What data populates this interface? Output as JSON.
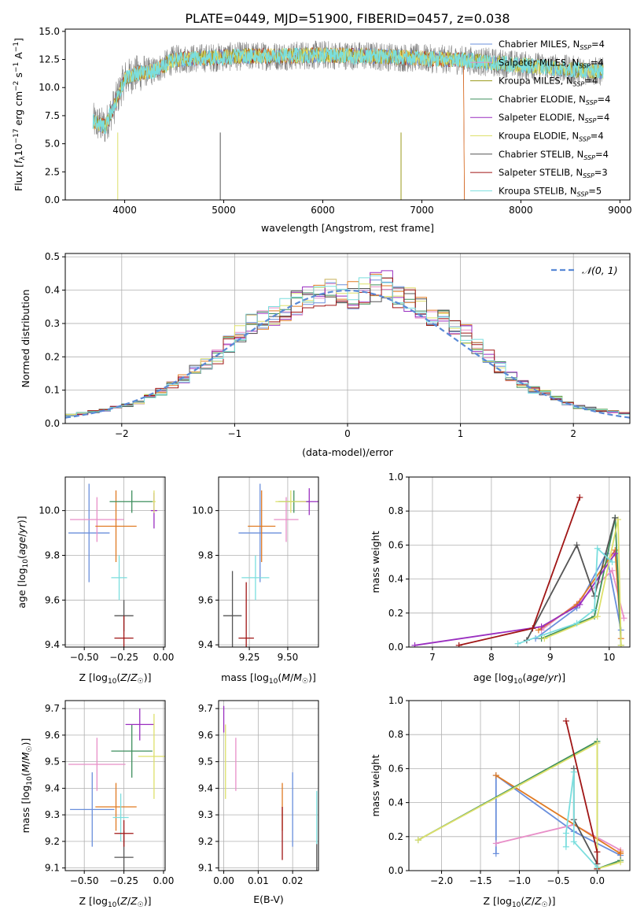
{
  "figure_title": "PLATE=0449, MJD=51900, FIBERID=0457, z=0.038",
  "colors": {
    "Chabrier MILES": "#6a8fdc",
    "Salpeter MILES": "#e88fc8",
    "Kroupa MILES": "#9a9a1a",
    "Chabrier ELODIE": "#3e8f5e",
    "Salpeter ELODIE": "#9a2fc0",
    "Kroupa ELODIE": "#dde06a",
    "Chabrier STELIB": "#555555",
    "Salpeter STELIB": "#a01515",
    "Kroupa STELIB": "#7adede",
    "orange": "#e07a22",
    "normal": "#5a8ad6"
  },
  "chart_data": [
    {
      "id": "spectrum",
      "type": "line",
      "title": "",
      "xlabel": "wavelength [Angstrom, rest frame]",
      "ylabel": "Flux [f_λ10^-17 erg cm^-2 s^-1 A^-1]",
      "xlim": [
        3400,
        9100
      ],
      "ylim": [
        0,
        15.2
      ],
      "xticks": [
        4000,
        5000,
        6000,
        7000,
        8000,
        9000
      ],
      "yticks": [
        0.0,
        2.5,
        5.0,
        7.5,
        10.0,
        12.5,
        15.0
      ],
      "grid": false,
      "legend_position": "top-right",
      "legend": [
        {
          "name": "Chabrier MILES, N_SSP=4",
          "color": "#6a8fdc"
        },
        {
          "name": "Salpeter MILES, N_SSP=4",
          "color": "#e88fc8"
        },
        {
          "name": "Kroupa MILES, N_SSP=4",
          "color": "#9a9a1a"
        },
        {
          "name": "Chabrier ELODIE, N_SSP=4",
          "color": "#3e8f5e"
        },
        {
          "name": "Salpeter ELODIE, N_SSP=4",
          "color": "#9a2fc0"
        },
        {
          "name": "Kroupa ELODIE, N_SSP=4",
          "color": "#dde06a"
        },
        {
          "name": "Chabrier STELIB, N_SSP=4",
          "color": "#555555"
        },
        {
          "name": "Salpeter STELIB, N_SSP=3",
          "color": "#a01515"
        },
        {
          "name": "Kroupa STELIB, N_SSP=5",
          "color": "#7adede"
        }
      ],
      "data_range": [
        3680,
        8830
      ],
      "continuum": [
        [
          3680,
          7.0
        ],
        [
          3800,
          6.5
        ],
        [
          3900,
          8.5
        ],
        [
          4000,
          10.8
        ],
        [
          4100,
          11.2
        ],
        [
          4300,
          11.5
        ],
        [
          4500,
          12.5
        ],
        [
          4700,
          12.6
        ],
        [
          5000,
          12.7
        ],
        [
          5200,
          12.8
        ],
        [
          5500,
          12.8
        ],
        [
          6000,
          12.9
        ],
        [
          6500,
          12.8
        ],
        [
          7000,
          12.6
        ],
        [
          7500,
          12.4
        ],
        [
          8000,
          12.0
        ],
        [
          8500,
          11.6
        ],
        [
          8830,
          11.4
        ]
      ]
    },
    {
      "id": "histogram",
      "type": "bar",
      "title": "",
      "xlabel": "(data-model)/error",
      "ylabel": "Normed distribution",
      "xlim": [
        -2.5,
        2.5
      ],
      "ylim": [
        0,
        0.51
      ],
      "xticks": [
        -2,
        -1,
        0,
        1,
        2
      ],
      "yticks": [
        0.0,
        0.1,
        0.2,
        0.3,
        0.4,
        0.5
      ],
      "grid": true,
      "legend_position": "top-right",
      "legend_label": "𝒩(0, 1)",
      "bin_width": 0.1,
      "bin_centers": [
        -2.45,
        -2.35,
        -2.25,
        -2.15,
        -2.05,
        -1.95,
        -1.85,
        -1.75,
        -1.65,
        -1.55,
        -1.45,
        -1.35,
        -1.25,
        -1.15,
        -1.05,
        -0.95,
        -0.85,
        -0.75,
        -0.65,
        -0.55,
        -0.45,
        -0.35,
        -0.25,
        -0.15,
        -0.05,
        0.05,
        0.15,
        0.25,
        0.35,
        0.45,
        0.55,
        0.65,
        0.75,
        0.85,
        0.95,
        1.05,
        1.15,
        1.25,
        1.35,
        1.45,
        1.55,
        1.65,
        1.75,
        1.85,
        1.95,
        2.05,
        2.15,
        2.25,
        2.35,
        2.45
      ],
      "base_values": [
        0.025,
        0.03,
        0.035,
        0.04,
        0.05,
        0.055,
        0.065,
        0.08,
        0.095,
        0.115,
        0.135,
        0.16,
        0.175,
        0.2,
        0.24,
        0.27,
        0.3,
        0.31,
        0.325,
        0.34,
        0.36,
        0.375,
        0.38,
        0.39,
        0.39,
        0.385,
        0.4,
        0.41,
        0.415,
        0.39,
        0.37,
        0.35,
        0.33,
        0.31,
        0.3,
        0.27,
        0.23,
        0.2,
        0.17,
        0.14,
        0.12,
        0.1,
        0.09,
        0.075,
        0.06,
        0.05,
        0.045,
        0.04,
        0.035,
        0.03
      ],
      "normal_curve": {
        "mean": 0,
        "sigma": 1
      }
    },
    {
      "id": "age-vs-Z",
      "type": "scatter",
      "xlabel": "Z [log10(Z/Z☉)]",
      "ylabel": "age  [log10(age/yr)]",
      "xlim": [
        -0.62,
        0.01
      ],
      "ylim": [
        9.39,
        10.15
      ],
      "xticks": [
        -0.5,
        -0.25,
        0.0
      ],
      "xticklabels": [
        "−0.50",
        "−0.25",
        "0.00"
      ],
      "yticks": [
        9.4,
        9.6,
        9.8,
        10.0
      ],
      "grid": true,
      "points": [
        {
          "name": "Chabrier MILES",
          "x": -0.47,
          "y": 9.9,
          "ex": 0.13,
          "ey": 0.22
        },
        {
          "name": "Salpeter MILES",
          "x": -0.42,
          "y": 9.96,
          "ex": 0.17,
          "ey": 0.1
        },
        {
          "name": "orange",
          "x": -0.3,
          "y": 9.93,
          "ex": 0.13,
          "ey": 0.16
        },
        {
          "name": "Chabrier ELODIE",
          "x": -0.2,
          "y": 10.04,
          "ex": 0.14,
          "ey": 0.05
        },
        {
          "name": "Salpeter ELODIE",
          "x": -0.06,
          "y": 10.0,
          "ex": 0.02,
          "ey": 0.08
        },
        {
          "name": "Kroupa ELODIE",
          "x": -0.06,
          "y": 10.04,
          "ex": 0.01,
          "ey": 0.05
        },
        {
          "name": "Kroupa STELIB",
          "x": -0.28,
          "y": 9.7,
          "ex": 0.05,
          "ey": 0.1
        },
        {
          "name": "Chabrier STELIB",
          "x": -0.25,
          "y": 9.53,
          "ex": 0.06,
          "ey": 0.07
        },
        {
          "name": "Salpeter STELIB",
          "x": -0.25,
          "y": 9.43,
          "ex": 0.06,
          "ey": 0.1
        }
      ]
    },
    {
      "id": "age-vs-mass",
      "type": "scatter",
      "xlabel": "mass [log10(M/M☉)]",
      "ylabel": "",
      "xlim": [
        9.05,
        9.7
      ],
      "ylim": [
        9.39,
        10.15
      ],
      "xticks": [
        9.25,
        9.5
      ],
      "xticklabels": [
        "9.25",
        "9.50"
      ],
      "yticks": [
        9.4,
        9.6,
        9.8,
        10.0
      ],
      "grid": true,
      "points": [
        {
          "name": "Chabrier MILES",
          "x": 9.32,
          "y": 9.9,
          "ex": 0.14,
          "ey": 0.22
        },
        {
          "name": "Salpeter MILES",
          "x": 9.49,
          "y": 9.96,
          "ex": 0.08,
          "ey": 0.1
        },
        {
          "name": "orange",
          "x": 9.33,
          "y": 9.93,
          "ex": 0.09,
          "ey": 0.16
        },
        {
          "name": "Chabrier ELODIE",
          "x": 9.54,
          "y": 10.04,
          "ex": 0.1,
          "ey": 0.05
        },
        {
          "name": "Salpeter ELODIE",
          "x": 9.64,
          "y": 10.04,
          "ex": 0.06,
          "ey": 0.06
        },
        {
          "name": "Kroupa ELODIE",
          "x": 9.52,
          "y": 10.04,
          "ex": 0.1,
          "ey": 0.05
        },
        {
          "name": "Kroupa STELIB",
          "x": 9.29,
          "y": 9.7,
          "ex": 0.09,
          "ey": 0.1
        },
        {
          "name": "Chabrier STELIB",
          "x": 9.14,
          "y": 9.53,
          "ex": 0.06,
          "ey": 0.2
        },
        {
          "name": "Salpeter STELIB",
          "x": 9.23,
          "y": 9.43,
          "ex": 0.05,
          "ey": 0.25
        }
      ]
    },
    {
      "id": "massweight-vs-age",
      "type": "line",
      "xlabel": "age  [log10(age/yr)]",
      "ylabel": "mass weight",
      "xlim": [
        6.6,
        10.35
      ],
      "ylim": [
        0,
        1.0
      ],
      "xticks": [
        7,
        8,
        9,
        10
      ],
      "yticks": [
        0.0,
        0.2,
        0.4,
        0.6,
        0.8,
        1.0
      ],
      "grid": true,
      "series": [
        {
          "name": "Chabrier MILES",
          "x": [
            8.75,
            9.45,
            9.95,
            10.2
          ],
          "y": [
            0.05,
            0.23,
            0.55,
            0.1
          ]
        },
        {
          "name": "Salpeter MILES",
          "x": [
            8.85,
            9.5,
            10.05,
            10.25
          ],
          "y": [
            0.1,
            0.27,
            0.45,
            0.17
          ]
        },
        {
          "name": "orange",
          "x": [
            8.8,
            9.45,
            10.1,
            10.2
          ],
          "y": [
            0.1,
            0.25,
            0.57,
            0.05
          ]
        },
        {
          "name": "Chabrier ELODIE",
          "x": [
            8.85,
            9.75,
            10.1,
            10.2
          ],
          "y": [
            0.05,
            0.18,
            0.76,
            0.01
          ]
        },
        {
          "name": "Salpeter ELODIE",
          "x": [
            6.7,
            8.85,
            9.5,
            10.1
          ],
          "y": [
            0.01,
            0.12,
            0.25,
            0.55
          ]
        },
        {
          "name": "Kroupa ELODIE",
          "x": [
            8.9,
            9.8,
            10.15,
            10.2
          ],
          "y": [
            0.05,
            0.18,
            0.75,
            0.01
          ]
        },
        {
          "name": "Chabrier STELIB",
          "x": [
            8.6,
            9.45,
            9.75,
            10.1
          ],
          "y": [
            0.04,
            0.6,
            0.3,
            0.76
          ]
        },
        {
          "name": "Salpeter STELIB",
          "x": [
            7.45,
            8.7,
            9.5
          ],
          "y": [
            0.01,
            0.11,
            0.88
          ]
        },
        {
          "name": "Kroupa STELIB",
          "x": [
            8.45,
            9.45,
            9.75,
            9.8,
            10.05
          ],
          "y": [
            0.02,
            0.14,
            0.22,
            0.58,
            0.5
          ]
        }
      ]
    },
    {
      "id": "mass-vs-Z",
      "type": "scatter",
      "xlabel": "Z [log10(Z/Z☉)]",
      "ylabel": "mass [log10(M/M☉)]",
      "xlim": [
        -0.62,
        0.01
      ],
      "ylim": [
        9.09,
        9.73
      ],
      "xticks": [
        -0.5,
        -0.25,
        0.0
      ],
      "xticklabels": [
        "−0.50",
        "−0.25",
        "0.00"
      ],
      "yticks": [
        9.1,
        9.2,
        9.3,
        9.4,
        9.5,
        9.6,
        9.7
      ],
      "grid": true,
      "points": [
        {
          "name": "Chabrier MILES",
          "x": -0.45,
          "y": 9.32,
          "ex": 0.14,
          "ey": 0.14
        },
        {
          "name": "Salpeter MILES",
          "x": -0.42,
          "y": 9.49,
          "ex": 0.18,
          "ey": 0.1
        },
        {
          "name": "orange",
          "x": -0.3,
          "y": 9.33,
          "ex": 0.13,
          "ey": 0.09
        },
        {
          "name": "Chabrier ELODIE",
          "x": -0.2,
          "y": 9.54,
          "ex": 0.13,
          "ey": 0.1
        },
        {
          "name": "Salpeter ELODIE",
          "x": -0.15,
          "y": 9.64,
          "ex": 0.09,
          "ey": 0.06
        },
        {
          "name": "Kroupa ELODIE",
          "x": -0.06,
          "y": 9.52,
          "ex": 0.1,
          "ey": 0.16
        },
        {
          "name": "Kroupa STELIB",
          "x": -0.27,
          "y": 9.29,
          "ex": 0.05,
          "ey": 0.09
        },
        {
          "name": "Chabrier STELIB",
          "x": -0.25,
          "y": 9.14,
          "ex": 0.06,
          "ey": 0.1
        },
        {
          "name": "Salpeter STELIB",
          "x": -0.25,
          "y": 9.23,
          "ex": 0.06,
          "ey": 0.05
        }
      ]
    },
    {
      "id": "mass-vs-ebv",
      "type": "scatter",
      "xlabel": "E(B-V)",
      "ylabel": "",
      "xlim": [
        -0.0015,
        0.0275
      ],
      "ylim": [
        9.09,
        9.73
      ],
      "xticks": [
        0.0,
        0.01,
        0.02
      ],
      "xticklabels": [
        "0.00",
        "0.01",
        "0.02"
      ],
      "yticks": [
        9.1,
        9.2,
        9.3,
        9.4,
        9.5,
        9.6,
        9.7
      ],
      "grid": true,
      "points": [
        {
          "name": "Chabrier MILES",
          "x": 0.02,
          "y": 9.32,
          "ex": 0,
          "ey": 0.14
        },
        {
          "name": "Salpeter MILES",
          "x": 0.0035,
          "y": 9.49,
          "ex": 0,
          "ey": 0.1
        },
        {
          "name": "orange",
          "x": 0.017,
          "y": 9.33,
          "ex": 0,
          "ey": 0.09
        },
        {
          "name": "Salpeter ELODIE",
          "x": 0.0,
          "y": 9.66,
          "ex": 0,
          "ey": 0.05
        },
        {
          "name": "Kroupa ELODIE",
          "x": 0.0005,
          "y": 9.5,
          "ex": 0,
          "ey": 0.14
        },
        {
          "name": "Kroupa STELIB",
          "x": 0.027,
          "y": 9.29,
          "ex": 0,
          "ey": 0.1
        },
        {
          "name": "Chabrier STELIB",
          "x": 0.027,
          "y": 9.14,
          "ex": 0,
          "ey": 0.05
        },
        {
          "name": "Salpeter STELIB",
          "x": 0.017,
          "y": 9.23,
          "ex": 0,
          "ey": 0.1
        }
      ]
    },
    {
      "id": "massweight-vs-Z",
      "type": "line",
      "xlabel": "Z [log10(Z/Z☉)]",
      "ylabel": "mass weight",
      "xlim": [
        -2.42,
        0.42
      ],
      "ylim": [
        0,
        1.0
      ],
      "xticks": [
        -2.0,
        -1.5,
        -1.0,
        -0.5,
        0.0
      ],
      "xticklabels": [
        "−2.0",
        "−1.5",
        "−1.0",
        "−0.5",
        "0.0"
      ],
      "yticks": [
        0.0,
        0.2,
        0.4,
        0.6,
        0.8,
        1.0
      ],
      "grid": true,
      "series": [
        {
          "name": "Chabrier MILES",
          "x": [
            -1.3,
            -1.3,
            -0.3,
            0.3
          ],
          "y": [
            0.1,
            0.56,
            0.23,
            0.09
          ]
        },
        {
          "name": "Salpeter MILES",
          "x": [
            -1.3,
            -0.3,
            0.3
          ],
          "y": [
            0.16,
            0.27,
            0.12
          ]
        },
        {
          "name": "orange",
          "x": [
            -1.3,
            0.3,
            0.3
          ],
          "y": [
            0.56,
            0.1,
            0.11
          ]
        },
        {
          "name": "Chabrier ELODIE",
          "x": [
            -2.3,
            0.0,
            0.0,
            0.3
          ],
          "y": [
            0.18,
            0.76,
            0.01,
            0.06
          ]
        },
        {
          "name": "Kroupa ELODIE",
          "x": [
            -2.3,
            0.0,
            0.0,
            0.3
          ],
          "y": [
            0.18,
            0.75,
            0.01,
            0.05
          ]
        },
        {
          "name": "Chabrier STELIB",
          "x": [
            -0.3,
            -0.3,
            0.0
          ],
          "y": [
            0.6,
            0.3,
            0.04
          ]
        },
        {
          "name": "Salpeter STELIB",
          "x": [
            -0.4,
            0.0,
            0.0
          ],
          "y": [
            0.88,
            0.11,
            0.01
          ]
        },
        {
          "name": "Kroupa STELIB",
          "x": [
            -0.4,
            -0.4,
            -0.3,
            -0.3,
            0.0
          ],
          "y": [
            0.14,
            0.22,
            0.58,
            0.17,
            0.02
          ]
        }
      ]
    }
  ]
}
